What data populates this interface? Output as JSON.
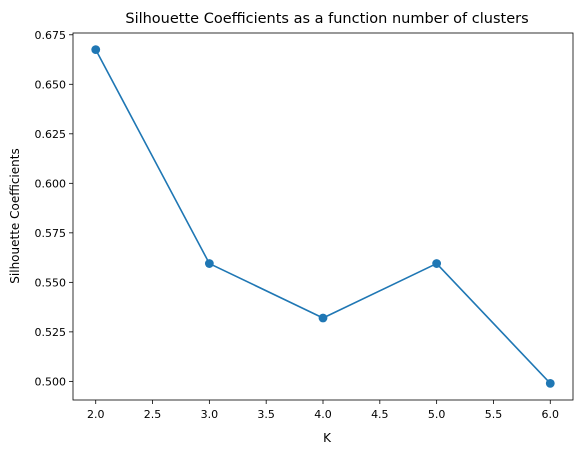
{
  "chart_data": {
    "type": "line",
    "title": "Silhouette Coefficients as a function number of clusters",
    "xlabel": "K",
    "ylabel": "Silhouette Coefficients",
    "x": [
      2.0,
      3.0,
      4.0,
      5.0,
      6.0
    ],
    "series": [
      {
        "values": [
          0.6675,
          0.5595,
          0.532,
          0.5595,
          0.499
        ],
        "color": "#1f77b4",
        "marker": "circle"
      }
    ],
    "xlim": [
      1.8,
      6.2
    ],
    "ylim": [
      0.4906,
      0.6759
    ],
    "xticks": [
      "2.0",
      "2.5",
      "3.0",
      "3.5",
      "4.0",
      "4.5",
      "5.0",
      "5.5",
      "6.0"
    ],
    "yticks": [
      "0.500",
      "0.525",
      "0.550",
      "0.575",
      "0.600",
      "0.625",
      "0.650",
      "0.675"
    ],
    "grid": false,
    "legend": "none"
  }
}
